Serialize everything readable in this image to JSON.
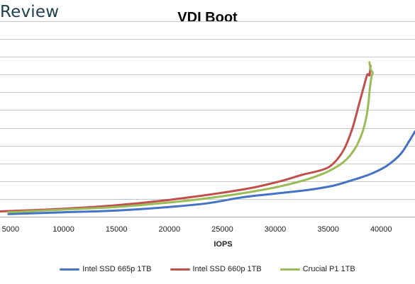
{
  "brand": "Review",
  "chart_data": {
    "type": "line",
    "title": "VDI Boot",
    "xlabel": "IOPS",
    "ylabel": "",
    "xlim": [
      4000,
      43200
    ],
    "ylim": [
      0,
      11
    ],
    "xticks": [
      5000,
      10000,
      15000,
      20000,
      25000,
      30000,
      35000,
      40000
    ],
    "xtick_labels": [
      "5000",
      "10000",
      "15000",
      "20000",
      "25000",
      "30000",
      "35000",
      "40000"
    ],
    "y_gridlines": [
      1,
      2,
      3,
      4,
      5,
      6,
      7,
      8,
      9,
      10,
      11
    ],
    "grid": true,
    "legend_position": "bottom",
    "series": [
      {
        "name": "Intel SSD 665p 1TB",
        "color": "#4472c4",
        "x": [
          4800,
          10000,
          15000,
          20000,
          23500,
          27000,
          30000,
          33000,
          35500,
          37500,
          39000,
          40500,
          41800,
          42600,
          43200
        ],
        "y": [
          0.15,
          0.25,
          0.35,
          0.55,
          0.75,
          1.1,
          1.3,
          1.5,
          1.75,
          2.1,
          2.4,
          2.85,
          3.5,
          4.2,
          4.8
        ]
      },
      {
        "name": "Intel SSD 660p 1TB",
        "color": "#c0504d",
        "x": [
          4000,
          10000,
          15000,
          20000,
          25000,
          28000,
          30500,
          32500,
          34500,
          35500,
          36500,
          37300,
          37900,
          38400,
          38700,
          38900,
          38950,
          39000
        ],
        "y": [
          0.3,
          0.45,
          0.65,
          0.95,
          1.35,
          1.65,
          2.0,
          2.35,
          2.65,
          3.0,
          3.8,
          5.0,
          6.3,
          7.4,
          8.0,
          7.95,
          8.2,
          8.5
        ]
      },
      {
        "name": "Crucial P1 1TB",
        "color": "#9bbb59",
        "x": [
          4800,
          10000,
          15000,
          20000,
          25000,
          30000,
          33000,
          35000,
          36500,
          37500,
          38200,
          38600,
          38800,
          38950,
          39100,
          39200,
          39000,
          38900
        ],
        "y": [
          0.25,
          0.4,
          0.55,
          0.8,
          1.15,
          1.65,
          2.1,
          2.55,
          3.1,
          3.8,
          4.7,
          5.6,
          6.4,
          7.3,
          7.9,
          8.1,
          8.3,
          8.7
        ]
      }
    ]
  }
}
